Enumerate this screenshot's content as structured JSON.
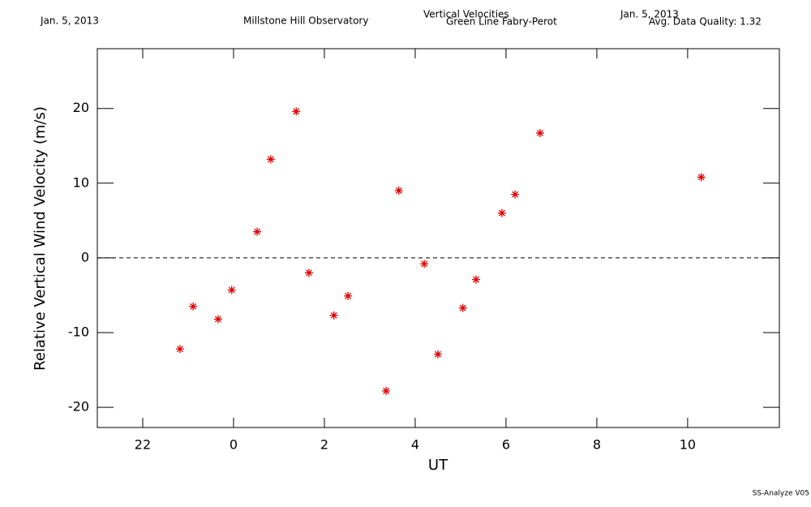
{
  "chart_data": {
    "type": "scatter",
    "header_left": "Jan. 5, 2013",
    "observatory": "Millstone Hill Observatory",
    "title": "Vertical Velocities",
    "subtitle": "Green Line Fabry-Perot",
    "header_date": "Jan. 5, 2013",
    "quality": "Avg. Data Quality: 1.32",
    "footer": "SS-Analyze V05",
    "x_label": "UT",
    "y_label": "Relative Vertical Wind Velocity (m/s)",
    "xlim": [
      21,
      36.02
    ],
    "ylim": [
      -22.7,
      28
    ],
    "xticks": [
      22,
      {
        "value": 24,
        "label": "0"
      },
      {
        "value": 26,
        "label": "2"
      },
      {
        "value": 28,
        "label": "4"
      },
      {
        "value": 30,
        "label": "6"
      },
      {
        "value": 32,
        "label": "8"
      },
      {
        "value": 34,
        "label": "10"
      }
    ],
    "yticks": [
      -20,
      -10,
      0,
      10,
      20
    ],
    "hline": 0,
    "color": "#e00000",
    "x": [
      22.82,
      23.11,
      23.66,
      23.96,
      24.52,
      24.82,
      25.38,
      25.66,
      26.21,
      26.52,
      27.36,
      27.64,
      28.2,
      28.5,
      29.05,
      29.34,
      29.91,
      30.2,
      30.75,
      34.3
    ],
    "values": [
      -12.2,
      -6.5,
      -8.2,
      -4.3,
      3.5,
      13.2,
      19.6,
      -2.0,
      -7.7,
      -5.1,
      -17.8,
      9.0,
      -0.8,
      -12.9,
      -6.7,
      -2.9,
      6.0,
      8.5,
      16.7,
      10.8
    ]
  }
}
